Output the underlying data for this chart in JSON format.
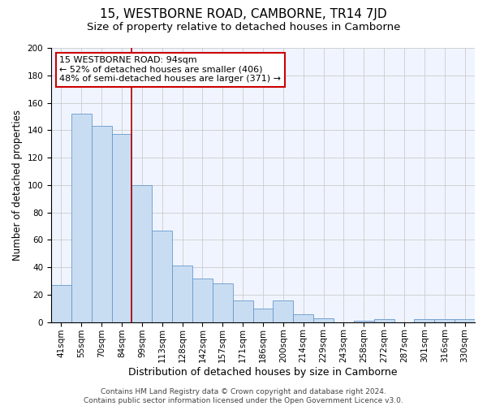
{
  "title": "15, WESTBORNE ROAD, CAMBORNE, TR14 7JD",
  "subtitle": "Size of property relative to detached houses in Camborne",
  "xlabel": "Distribution of detached houses by size in Camborne",
  "ylabel": "Number of detached properties",
  "categories": [
    "41sqm",
    "55sqm",
    "70sqm",
    "84sqm",
    "99sqm",
    "113sqm",
    "128sqm",
    "142sqm",
    "157sqm",
    "171sqm",
    "186sqm",
    "200sqm",
    "214sqm",
    "229sqm",
    "243sqm",
    "258sqm",
    "272sqm",
    "287sqm",
    "301sqm",
    "316sqm",
    "330sqm"
  ],
  "values": [
    27,
    152,
    143,
    137,
    100,
    67,
    41,
    32,
    28,
    16,
    10,
    16,
    6,
    3,
    0,
    1,
    2,
    0,
    2,
    2,
    2
  ],
  "bar_color": "#c9ddf2",
  "bar_edge_color": "#6699cc",
  "property_line_color": "#aa0000",
  "annotation_line1": "15 WESTBORNE ROAD: 94sqm",
  "annotation_line2": "← 52% of detached houses are smaller (406)",
  "annotation_line3": "48% of semi-detached houses are larger (371) →",
  "annotation_box_color": "#ffffff",
  "annotation_box_edge": "#cc0000",
  "ylim": [
    0,
    200
  ],
  "yticks": [
    0,
    20,
    40,
    60,
    80,
    100,
    120,
    140,
    160,
    180,
    200
  ],
  "grid_color": "#cccccc",
  "background_color": "#f0f4ff",
  "footer_line1": "Contains HM Land Registry data © Crown copyright and database right 2024.",
  "footer_line2": "Contains public sector information licensed under the Open Government Licence v3.0.",
  "title_fontsize": 11,
  "subtitle_fontsize": 9.5,
  "xlabel_fontsize": 9,
  "ylabel_fontsize": 8.5,
  "tick_fontsize": 7.5,
  "annotation_fontsize": 8,
  "footer_fontsize": 6.5
}
